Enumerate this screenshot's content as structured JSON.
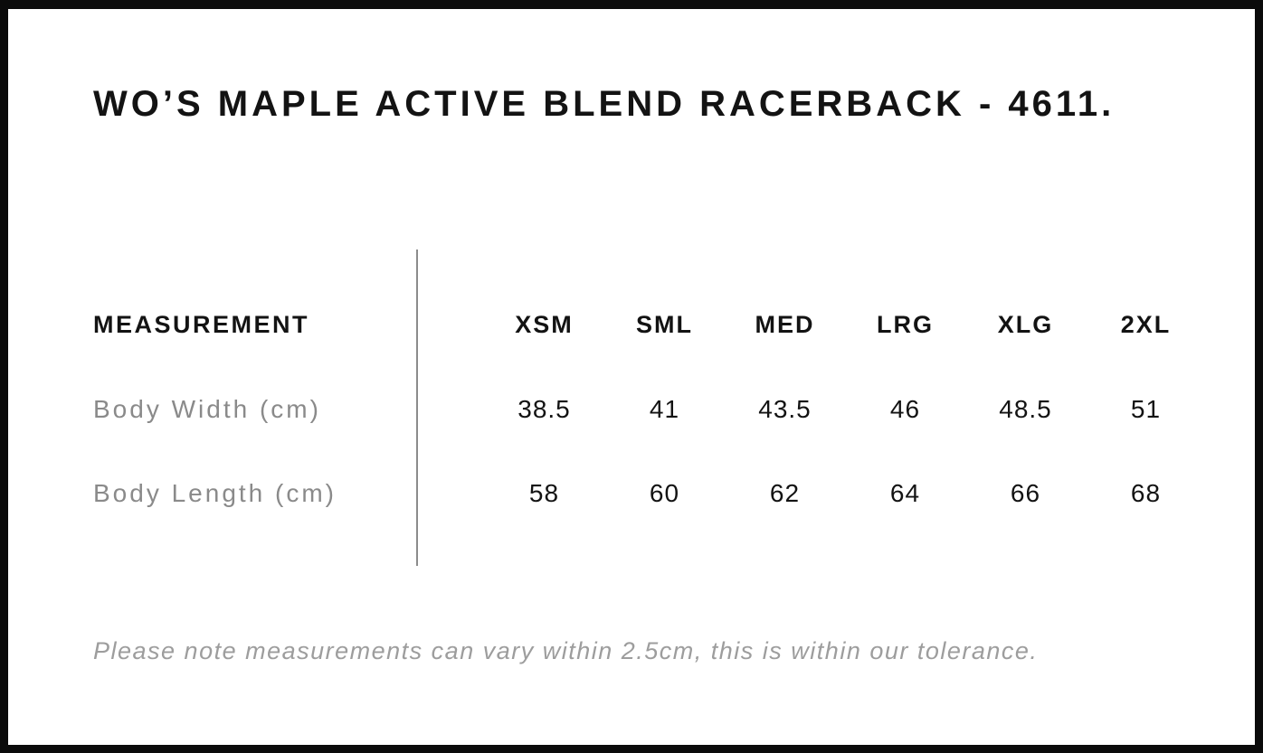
{
  "page": {
    "title": "WO’S MAPLE ACTIVE BLEND RACERBACK - 4611."
  },
  "table": {
    "header_label": "MEASUREMENT",
    "sizes": [
      "XSM",
      "SML",
      "MED",
      "LRG",
      "XLG",
      "2XL"
    ],
    "rows": [
      {
        "label": "Body Width (cm)",
        "values": [
          "38.5",
          "41",
          "43.5",
          "46",
          "48.5",
          "51"
        ]
      },
      {
        "label": "Body Length (cm)",
        "values": [
          "58",
          "60",
          "62",
          "64",
          "66",
          "68"
        ]
      }
    ]
  },
  "footnote": "Please note measurements can vary within 2.5cm, this is within our tolerance.",
  "colors": {
    "text": "#131313",
    "muted_label": "#8a8a8a",
    "footnote": "#9d9d9d",
    "divider": "#8c8c8c",
    "border": "#0b0b0b",
    "background": "#ffffff"
  }
}
